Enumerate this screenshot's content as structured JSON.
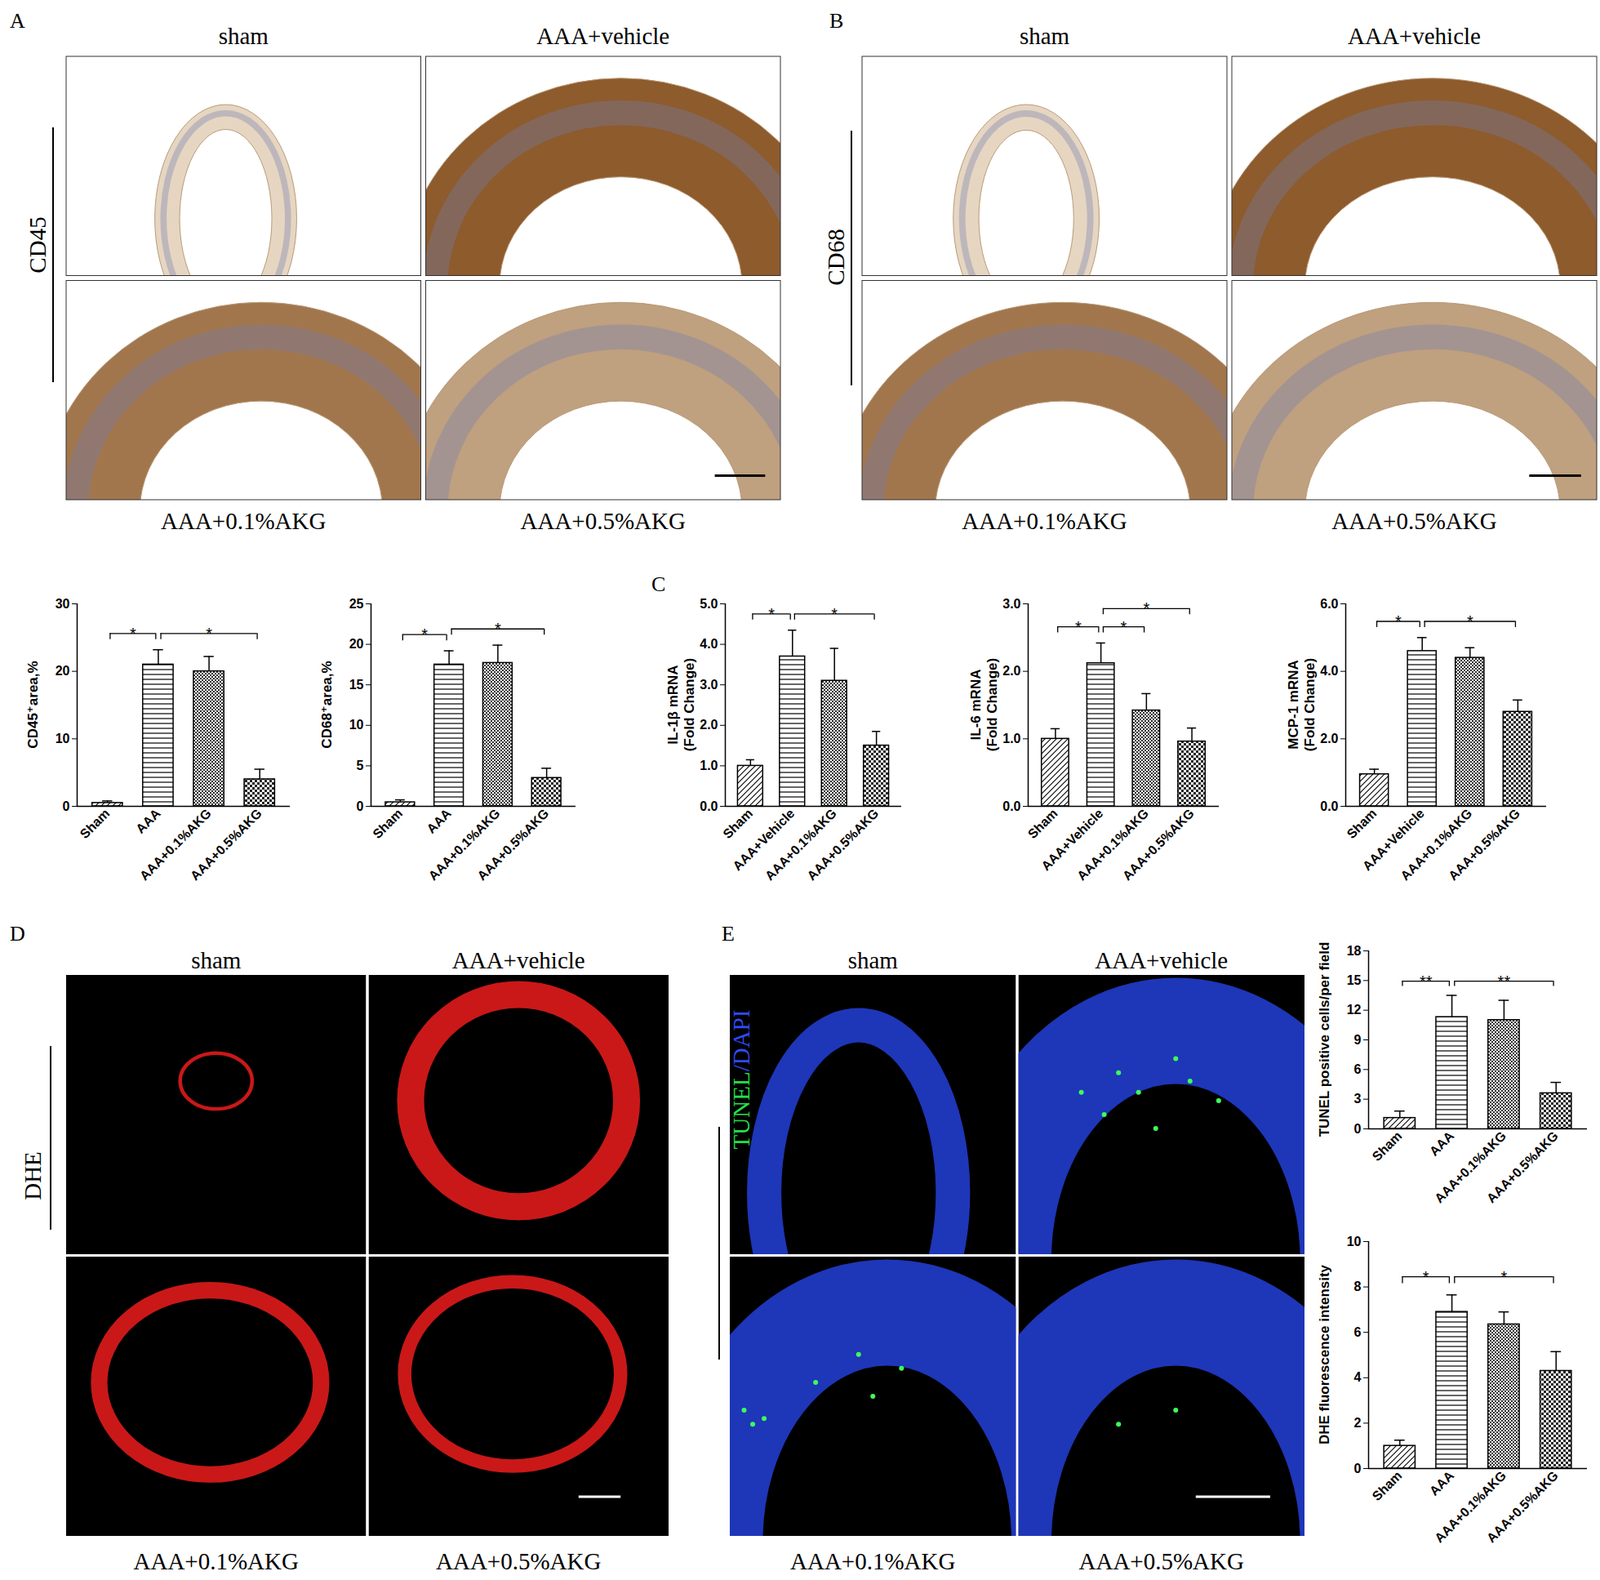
{
  "chart_data": [
    {
      "type": "bar",
      "ylabel": "CD45⁺area,%",
      "categories": [
        "Sham",
        "AAA",
        "AAA+0.1%AKG",
        "AAA+0.5%AKG"
      ],
      "values": [
        0.5,
        21,
        20,
        4
      ],
      "errors": [
        0.3,
        2.2,
        2.2,
        1.5
      ],
      "ylim": [
        0,
        30
      ],
      "yticks": [
        0,
        10,
        20,
        30
      ],
      "significance": [
        {
          "from": "Sham",
          "to": "AAA",
          "label": "*"
        },
        {
          "from": "AAA",
          "to": "AAA+0.5%AKG",
          "label": "*"
        }
      ]
    },
    {
      "type": "bar",
      "ylabel": "CD68⁺area,%",
      "categories": [
        "Sham",
        "AAA",
        "AAA+0.1%AKG",
        "AAA+0.5%AKG"
      ],
      "values": [
        0.5,
        17.5,
        17.7,
        3.5
      ],
      "errors": [
        0.3,
        1.7,
        2.2,
        1.2
      ],
      "ylim": [
        0,
        25
      ],
      "yticks": [
        0,
        5,
        10,
        15,
        20,
        25
      ],
      "significance": [
        {
          "from": "Sham",
          "to": "AAA",
          "label": "*"
        },
        {
          "from": "AAA",
          "to": "AAA+0.5%AKG",
          "label": "*"
        }
      ]
    },
    {
      "type": "bar",
      "ylabel": "IL-1β mRNA\n(Fold Change)",
      "categories": [
        "Sham",
        "AAA+Vehicle",
        "AAA+0.1%AKG",
        "AAA+0.5%AKG"
      ],
      "values": [
        1,
        3.7,
        3.1,
        1.5
      ],
      "errors": [
        0.15,
        0.65,
        0.8,
        0.35
      ],
      "ylim": [
        0,
        5
      ],
      "yticks": [
        0,
        1,
        2,
        3,
        4,
        5
      ],
      "significance": [
        {
          "from": "Sham",
          "to": "AAA+Vehicle",
          "label": "*"
        },
        {
          "from": "AAA+Vehicle",
          "to": "AAA+0.5%AKG",
          "label": "*"
        }
      ]
    },
    {
      "type": "bar",
      "ylabel": "IL-6 mRNA\n(Fold Change)",
      "categories": [
        "Sham",
        "AAA+Vehicle",
        "AAA+0.1%AKG",
        "AAA+0.5%AKG"
      ],
      "values": [
        1,
        2.12,
        1.42,
        0.96
      ],
      "errors": [
        0.15,
        0.3,
        0.25,
        0.2
      ],
      "ylim": [
        0,
        3
      ],
      "yticks": [
        0,
        1,
        2,
        3
      ],
      "significance": [
        {
          "from": "Sham",
          "to": "AAA+Vehicle",
          "label": "*"
        },
        {
          "from": "AAA+Vehicle",
          "to": "AAA+0.1%AKG",
          "label": "*"
        },
        {
          "from": "AAA+Vehicle",
          "to": "AAA+0.5%AKG",
          "label": "*"
        }
      ]
    },
    {
      "type": "bar",
      "ylabel": "MCP-1 mRNA\n(Fold Change)",
      "categories": [
        "Sham",
        "AAA+Vehicle",
        "AAA+0.1%AKG",
        "AAA+0.5%AKG"
      ],
      "values": [
        0.95,
        4.6,
        4.4,
        2.8
      ],
      "errors": [
        0.15,
        0.4,
        0.3,
        0.35
      ],
      "ylim": [
        0,
        6
      ],
      "yticks": [
        0,
        2,
        4,
        6
      ],
      "significance": [
        {
          "from": "Sham",
          "to": "AAA+Vehicle",
          "label": "*"
        },
        {
          "from": "AAA+Vehicle",
          "to": "AAA+0.5%AKG",
          "label": "*"
        }
      ]
    },
    {
      "type": "bar",
      "ylabel": "TUNEL positive cells/per field",
      "categories": [
        "Sham",
        "AAA",
        "AAA+0.1%AKG",
        "AAA+0.5%AKG"
      ],
      "values": [
        1.1,
        11.3,
        11,
        3.6
      ],
      "errors": [
        0.7,
        2.2,
        2,
        1.1
      ],
      "ylim": [
        0,
        18
      ],
      "yticks": [
        0,
        3,
        6,
        9,
        12,
        15,
        18
      ],
      "significance": [
        {
          "from": "Sham",
          "to": "AAA",
          "label": "**"
        },
        {
          "from": "AAA",
          "to": "AAA+0.5%AKG",
          "label": "**"
        }
      ]
    },
    {
      "type": "bar",
      "ylabel": "DHE fluorescence intensity",
      "categories": [
        "Sham",
        "AAA",
        "AAA+0.1%AKG",
        "AAA+0.5%AKG"
      ],
      "values": [
        1,
        6.9,
        6.35,
        4.3
      ],
      "errors": [
        0.25,
        0.75,
        0.55,
        0.85
      ],
      "ylim": [
        0,
        10
      ],
      "yticks": [
        0,
        2,
        4,
        6,
        8,
        10
      ],
      "significance": [
        {
          "from": "Sham",
          "to": "AAA",
          "label": "*"
        },
        {
          "from": "AAA",
          "to": "AAA+0.5%AKG",
          "label": "*"
        }
      ]
    }
  ],
  "figure": {
    "panels": [
      {
        "label": "A",
        "type": "image",
        "row_label": "CD45",
        "images": [
          "sham",
          "AAA+vehicle",
          "AAA+0.1%AKG",
          "AAA+0.5%AKG"
        ]
      },
      {
        "label": "B",
        "type": "image",
        "row_label": "CD68",
        "images": [
          "sham",
          "AAA+vehicle",
          "AAA+0.1%AKG",
          "AAA+0.5%AKG"
        ]
      },
      {
        "label": "C"
      },
      {
        "label": "D",
        "type": "image",
        "row_label": "DHE",
        "images": [
          "sham",
          "AAA+vehicle",
          "AAA+0.1%AKG",
          "AAA+0.5%AKG"
        ]
      },
      {
        "label": "E",
        "type": "image",
        "row_label": "TUNEL/DAPI",
        "images": [
          "sham",
          "AAA+vehicle",
          "AAA+0.1%AKG",
          "AAA+0.5%AKG"
        ]
      }
    ]
  }
}
